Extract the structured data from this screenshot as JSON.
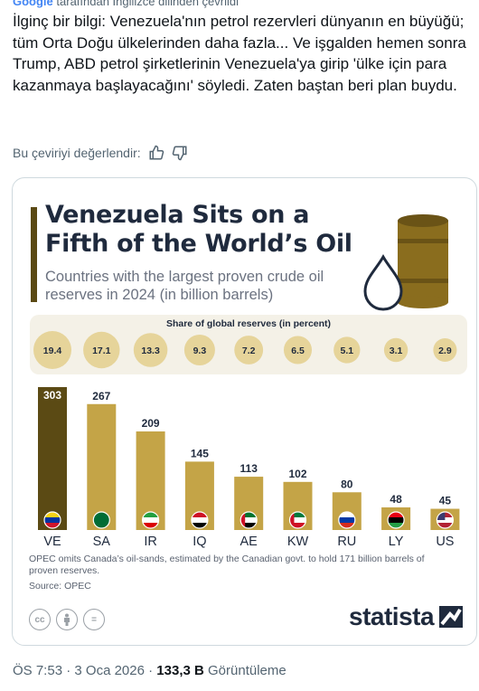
{
  "tweet": {
    "translated_by_prefix": "Google",
    "translated_by_rest": " tarafından İngilizce dilinden çevrildi",
    "text": "İlginç bir bilgi: Venezuela'nın petrol rezervleri dünyanın en büyüğü; tüm Orta Doğu ülkelerinden daha fazla... Ve işgalden hemen sonra Trump, ABD petrol şirketlerinin Venezuela'ya girip 'ülke için para kazanmaya başlayacağını' söyledi. Zaten baştan beri plan buydu.",
    "rate_label": "Bu çeviriyi değerlendir:",
    "time": "ÖS 7:53",
    "date": "3 Oca 2026",
    "views_count": "133,3 B",
    "views_label": "Görüntüleme",
    "separator": "·"
  },
  "chart_data": {
    "type": "bar",
    "title": "Venezuela Sits on a Fifth of the World’s Oil",
    "subtitle": "Countries with the largest proven crude oil reserves in 2024 (in billion barrels)",
    "share_title": "Share of global reserves (in percent)",
    "categories": [
      "VE",
      "SA",
      "IR",
      "IQ",
      "AE",
      "KW",
      "RU",
      "LY",
      "US"
    ],
    "values": [
      303,
      267,
      209,
      145,
      113,
      102,
      80,
      48,
      45
    ],
    "value_labels": [
      "303",
      "267",
      "209",
      "145",
      "113",
      "102",
      "80",
      "48",
      "45"
    ],
    "share": [
      19.4,
      17.1,
      13.3,
      9.3,
      7.2,
      6.5,
      5.1,
      3.1,
      2.9
    ],
    "share_labels": [
      "19.4",
      "17.1",
      "13.3",
      "9.3",
      "7.2",
      "6.5",
      "5.1",
      "3.1",
      "2.9"
    ],
    "flags": [
      "flag-venezuela-icon",
      "flag-saudi-arabia-icon",
      "flag-iran-icon",
      "flag-iraq-icon",
      "flag-uae-icon",
      "flag-kuwait-icon",
      "flag-russia-icon",
      "flag-libya-icon",
      "flag-usa-icon"
    ],
    "colors": {
      "first_bar": "#5b4a14",
      "bars": "#c4a447",
      "bubble": "#e6d49a",
      "text_dark": "#1f2a3d"
    },
    "footnote": "OPEC omits Canada’s oil-sands, estimated by the Canadian govt. to hold 171 billion barrels of proven reserves.",
    "source": "Source: OPEC",
    "brand": "statista"
  }
}
